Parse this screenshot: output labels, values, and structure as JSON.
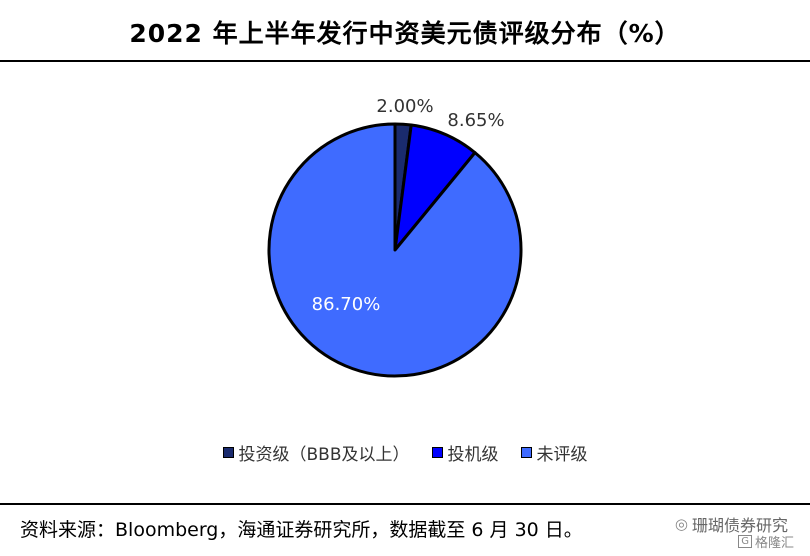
{
  "title": "2022 年上半年发行中资美元债评级分布（%）",
  "source_note": "资料来源：Bloomberg，海通证券研究所，数据截至 6 月 30 日。",
  "watermark": {
    "icon": "wechat-icon",
    "text": "珊瑚债券研究",
    "sub_text": "格隆汇",
    "sub_mark": "G"
  },
  "chart_data": {
    "type": "pie",
    "title": "2022 年上半年发行中资美元债评级分布（%）",
    "categories": [
      "投资级（BBB及以上）",
      "投机级",
      "未评级"
    ],
    "values": [
      2.0,
      8.65,
      86.7
    ],
    "labels": [
      "2.00%",
      "8.65%",
      "86.70%"
    ],
    "colors": [
      "#1a2b6e",
      "#0000ff",
      "#3f6bff"
    ],
    "start": "top, clockwise",
    "legend_position": "bottom"
  },
  "legend": {
    "items": [
      {
        "label": "投资级（BBB及以上）",
        "color": "#1a2b6e"
      },
      {
        "label": "投机级",
        "color": "#0000ff"
      },
      {
        "label": "未评级",
        "color": "#3f6bff"
      }
    ]
  }
}
